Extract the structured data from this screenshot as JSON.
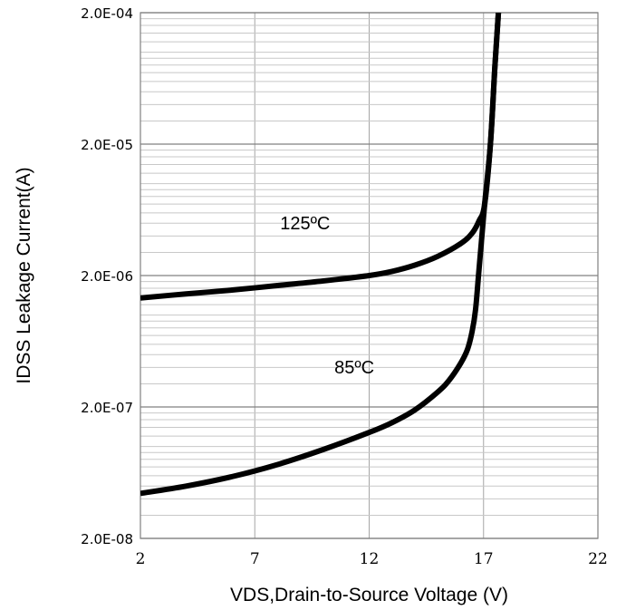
{
  "chart_data": {
    "type": "line",
    "title": "",
    "xlabel": "VDS,Drain-to-Source Voltage (V)",
    "ylabel": "IDSS Leakage Current(A)",
    "xlim": [
      2,
      22
    ],
    "ylim": [
      2e-08,
      0.0002
    ],
    "y_scale": "log",
    "grid": true,
    "x_ticks": [
      2,
      7,
      12,
      17,
      22
    ],
    "x_tick_labels": [
      "2",
      "7",
      "12",
      "17",
      "22"
    ],
    "y_ticks": [
      2e-08,
      2e-07,
      2e-06,
      2e-05,
      0.0002
    ],
    "y_tick_labels": [
      "2.0E-08",
      "2.0E-07",
      "2.0E-06",
      "2.0E-05",
      "2.0E-04"
    ],
    "series": [
      {
        "name": "125ºC",
        "x": [
          2,
          4,
          6,
          8,
          10,
          12,
          13,
          14,
          15,
          16,
          16.5,
          16.8,
          17.05,
          17.3,
          17.5,
          17.65
        ],
        "y": [
          1.35e-06,
          1.45e-06,
          1.55e-06,
          1.68e-06,
          1.82e-06,
          2e-06,
          2.15e-06,
          2.4e-06,
          2.8e-06,
          3.5e-06,
          4.2e-06,
          5.2e-06,
          7e-06,
          2e-05,
          8e-05,
          0.0002
        ]
      },
      {
        "name": "85ºC",
        "x": [
          2,
          4,
          6,
          8,
          10,
          12,
          13,
          14,
          15,
          15.5,
          16,
          16.3,
          16.5,
          16.65,
          16.8,
          17.05,
          17.3,
          17.5,
          17.65
        ],
        "y": [
          4.4e-08,
          5e-08,
          5.9e-08,
          7.3e-08,
          9.5e-08,
          1.28e-07,
          1.52e-07,
          1.9e-07,
          2.6e-07,
          3.2e-07,
          4.3e-07,
          5.5e-07,
          7.5e-07,
          1.1e-06,
          2.2e-06,
          7e-06,
          2e-05,
          8e-05,
          0.0002
        ]
      }
    ],
    "annotations": [
      {
        "text": "125ºC",
        "x": 9.2,
        "y": 4.5e-06
      },
      {
        "text": "85ºC",
        "x": 11.35,
        "y": 3.6e-07
      }
    ]
  }
}
